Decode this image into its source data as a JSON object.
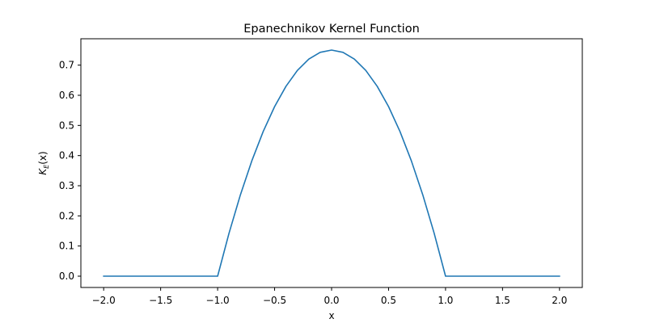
{
  "chart_data": {
    "type": "line",
    "title": "Epanechnikov Kernel Function",
    "xlabel": "x",
    "ylabel_base": "K",
    "ylabel_subscript": "E",
    "ylabel_arg": "(x)",
    "xlim": [
      -2.2,
      2.2
    ],
    "ylim": [
      -0.0375,
      0.7875
    ],
    "xticks": [
      -2.0,
      -1.5,
      -1.0,
      -0.5,
      0.0,
      0.5,
      1.0,
      1.5,
      2.0
    ],
    "xtick_labels": [
      "−2.0",
      "−1.5",
      "−1.0",
      "−0.5",
      "0.0",
      "0.5",
      "1.0",
      "1.5",
      "2.0"
    ],
    "yticks": [
      0.0,
      0.1,
      0.2,
      0.3,
      0.4,
      0.5,
      0.6,
      0.7
    ],
    "ytick_labels": [
      "0.0",
      "0.1",
      "0.2",
      "0.3",
      "0.4",
      "0.5",
      "0.6",
      "0.7"
    ],
    "grid": false,
    "series": [
      {
        "color": "#1f77b4",
        "x": [
          -2.0,
          -1.5,
          -1.0,
          -0.9,
          -0.8,
          -0.7,
          -0.6,
          -0.5,
          -0.4,
          -0.3,
          -0.2,
          -0.1,
          0.0,
          0.1,
          0.2,
          0.3,
          0.4,
          0.5,
          0.6,
          0.7,
          0.8,
          0.9,
          1.0,
          1.5,
          2.0
        ],
        "y": [
          0.0,
          0.0,
          0.0,
          0.1425,
          0.27,
          0.3825,
          0.48,
          0.5625,
          0.63,
          0.6825,
          0.72,
          0.7425,
          0.75,
          0.7425,
          0.72,
          0.6825,
          0.63,
          0.5625,
          0.48,
          0.3825,
          0.27,
          0.1425,
          0.0,
          0.0,
          0.0
        ]
      }
    ]
  }
}
